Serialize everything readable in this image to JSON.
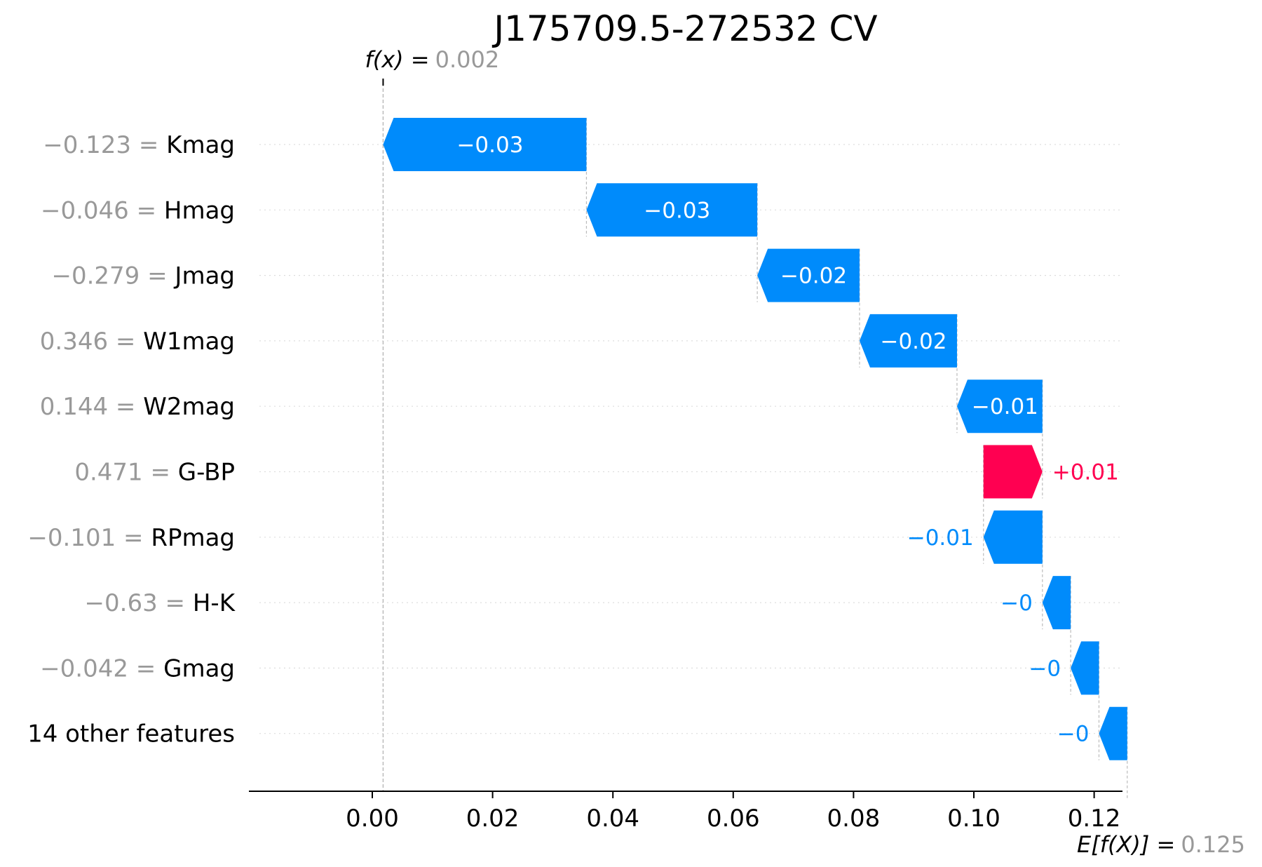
{
  "chart_data": {
    "type": "waterfall",
    "title": "J175709.5-272532 CV",
    "fx_label": "f(x) =",
    "fx_value": "0.002",
    "ex_label": "E[f(X)] =",
    "ex_value": "0.125",
    "base_value": 0.125,
    "xlim": [
      -0.02,
      0.125
    ],
    "x_ticks": [
      0.0,
      0.02,
      0.04,
      0.06,
      0.08,
      0.1,
      0.12
    ],
    "x_tick_labels": [
      "0.00",
      "0.02",
      "0.04",
      "0.06",
      "0.08",
      "0.10",
      "0.12"
    ],
    "colors": {
      "negative": "#008bfb",
      "positive": "#ff0051"
    },
    "features": [
      {
        "value": "−0.123",
        "name": "Kmag",
        "start": 0.0356,
        "end": 0.0018,
        "label": "−0.03"
      },
      {
        "value": "−0.046",
        "name": "Hmag",
        "start": 0.064,
        "end": 0.0356,
        "label": "−0.03"
      },
      {
        "value": "−0.279",
        "name": "Jmag",
        "start": 0.081,
        "end": 0.064,
        "label": "−0.02"
      },
      {
        "value": "0.346",
        "name": "W1mag",
        "start": 0.0972,
        "end": 0.081,
        "label": "−0.02"
      },
      {
        "value": "0.144",
        "name": "W2mag",
        "start": 0.1114,
        "end": 0.0972,
        "label": "−0.01"
      },
      {
        "value": "0.471",
        "name": "G-BP",
        "start": 0.1016,
        "end": 0.1114,
        "label": "+0.01"
      },
      {
        "value": "−0.101",
        "name": "RPmag",
        "start": 0.1114,
        "end": 0.1016,
        "label": "−0.01"
      },
      {
        "value": "−0.63",
        "name": "H-K",
        "start": 0.1161,
        "end": 0.1114,
        "label": "−0"
      },
      {
        "value": "−0.042",
        "name": "Gmag",
        "start": 0.1208,
        "end": 0.1161,
        "label": "−0"
      },
      {
        "value": "",
        "name": "14 other features",
        "start": 0.1255,
        "end": 0.1208,
        "label": "−0"
      }
    ]
  }
}
